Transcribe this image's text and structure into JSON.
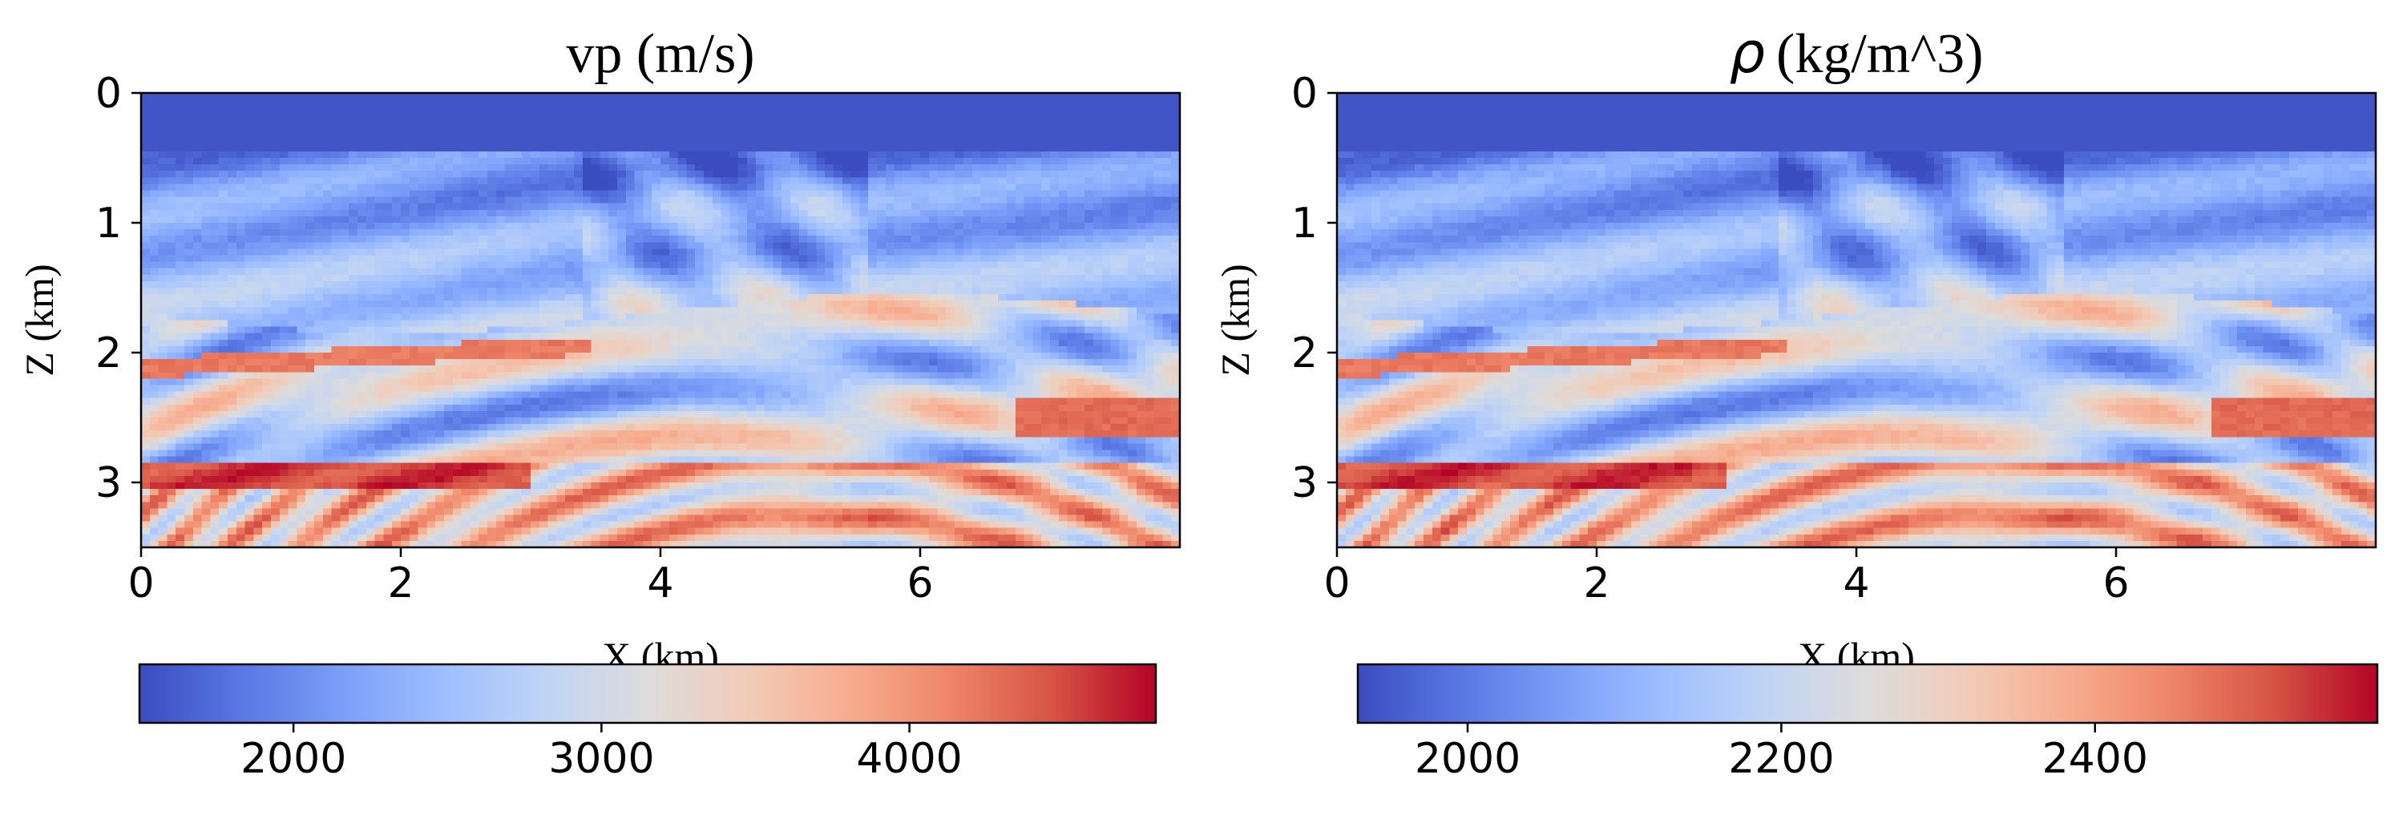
{
  "colors": {
    "colormap": "coolwarm",
    "cmap_stops": [
      "#3b4cc0",
      "#5977e3",
      "#7b9ff9",
      "#9ebeff",
      "#c0d4f5",
      "#dddcdc",
      "#f2cbb7",
      "#f7ac8e",
      "#ee8468",
      "#d65244",
      "#b40426"
    ],
    "frame": "#000000",
    "text": "#000000"
  },
  "chart_data": [
    {
      "type": "heatmap",
      "panel": "vp",
      "title": "vp (m/s)",
      "xlabel": "X (km)",
      "ylabel": "Z (km)",
      "xlim": [
        0,
        8.0
      ],
      "ylim": [
        3.5,
        0
      ],
      "xticks": [
        0,
        2,
        4,
        6
      ],
      "yticks": [
        0,
        1,
        2,
        3
      ],
      "y_inverted": true,
      "colorbar": {
        "orientation": "horizontal",
        "location": "bottom",
        "range": [
          1500,
          4800
        ],
        "ticks": [
          2000,
          3000,
          4000
        ]
      },
      "water_layer": {
        "z_top": 0,
        "z_bottom": 0.45
      },
      "structure": "Marmousi-type velocity model: water layer on top, dipping sedimentary layers with faults near X≈3.5–5.5 km, anticline of high values between X≈4–8 km at Z≈3–3.5 km"
    },
    {
      "type": "heatmap",
      "panel": "rho",
      "title_symbol": "ρ",
      "title": "(kg/m^3)",
      "xlabel": "X (km)",
      "ylabel": "Z (km)",
      "xlim": [
        0,
        8.0
      ],
      "ylim": [
        3.5,
        0
      ],
      "xticks": [
        0,
        2,
        4,
        6
      ],
      "yticks": [
        0,
        1,
        2,
        3
      ],
      "y_inverted": true,
      "colorbar": {
        "orientation": "horizontal",
        "location": "bottom",
        "range": [
          1930,
          2580
        ],
        "ticks": [
          2000,
          2200,
          2400
        ]
      },
      "water_layer": {
        "z_top": 0,
        "z_bottom": 0.45
      },
      "structure": "Marmousi-type density model with the same layering as vp"
    }
  ]
}
